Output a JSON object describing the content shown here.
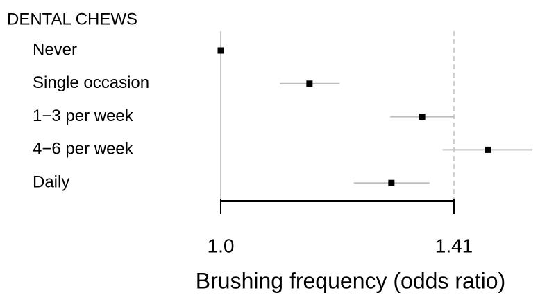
{
  "chart_data": {
    "type": "forest",
    "group_label": "DENTAL CHEWS",
    "x_label": "Brushing frequency (odds ratio)",
    "categories": [
      "Never",
      "Single occasion",
      "1−3 per week",
      "4−6 per week",
      "Daily"
    ],
    "values": [
      1.0,
      1.156,
      1.354,
      1.47,
      1.3
    ],
    "lower": [
      null,
      1.104,
      1.298,
      1.39,
      1.234
    ],
    "upper": [
      null,
      1.209,
      1.41,
      1.548,
      1.367
    ],
    "color": "#000000",
    "ci_color": "#bdbdbd",
    "xlim": [
      1.0,
      1.41
    ],
    "xticks": [
      {
        "value": 1.0,
        "label": "1.0"
      },
      1.41
    ]
  }
}
